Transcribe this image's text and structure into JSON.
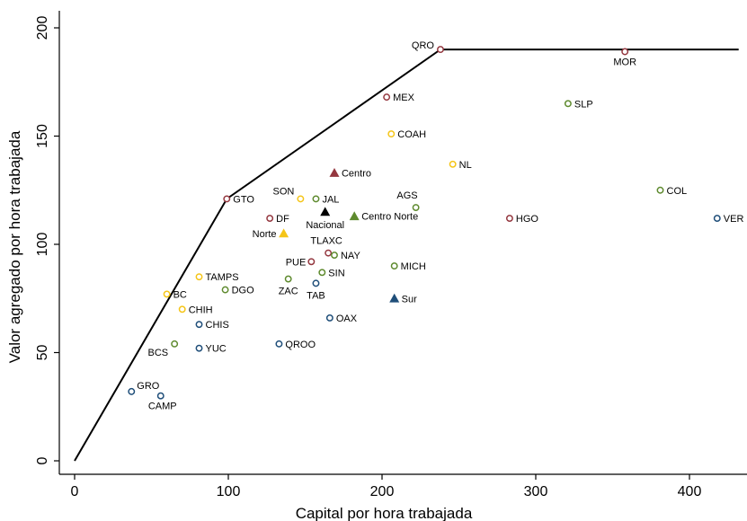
{
  "chart_data": {
    "type": "scatter",
    "xlabel": "Capital por hora trabajada",
    "ylabel": "Valor agregado por hora trabajada",
    "xlim": [
      -5,
      432
    ],
    "ylim": [
      -7,
      207
    ],
    "xticks": [
      0,
      100,
      200,
      300,
      400
    ],
    "yticks": [
      0,
      50,
      100,
      150,
      200
    ],
    "grid": false,
    "colors": {
      "centro": "#94373f",
      "norte": "#f5c518",
      "centro_norte": "#5e8a2e",
      "sur": "#1f4e79",
      "nacional": "#000000",
      "frontier": "#000000"
    },
    "frontier": [
      {
        "x": 0,
        "y": 0
      },
      {
        "x": 99,
        "y": 121
      },
      {
        "x": 238,
        "y": 190
      },
      {
        "x": 432,
        "y": 190
      }
    ],
    "states": [
      {
        "label": "QRO",
        "x": 238,
        "y": 190,
        "group": "centro",
        "anchor": "end",
        "dx": -7,
        "dy": -1
      },
      {
        "label": "MOR",
        "x": 358,
        "y": 189,
        "group": "centro",
        "anchor": "middle",
        "dx": 0,
        "dy": 15
      },
      {
        "label": "MEX",
        "x": 203,
        "y": 168,
        "group": "centro",
        "anchor": "start",
        "dx": 7,
        "dy": 4
      },
      {
        "label": "SLP",
        "x": 321,
        "y": 165,
        "group": "centro_norte",
        "anchor": "start",
        "dx": 7,
        "dy": 4
      },
      {
        "label": "COAH",
        "x": 206,
        "y": 151,
        "group": "norte",
        "anchor": "start",
        "dx": 7,
        "dy": 4
      },
      {
        "label": "NL",
        "x": 246,
        "y": 137,
        "group": "norte",
        "anchor": "start",
        "dx": 7,
        "dy": 4
      },
      {
        "label": "COL",
        "x": 381,
        "y": 125,
        "group": "centro_norte",
        "anchor": "start",
        "dx": 7,
        "dy": 4
      },
      {
        "label": "GTO",
        "x": 99,
        "y": 121,
        "group": "centro",
        "anchor": "start",
        "dx": 7,
        "dy": 4
      },
      {
        "label": "SON",
        "x": 147,
        "y": 121,
        "group": "norte",
        "anchor": "end",
        "dx": -7,
        "dy": -5
      },
      {
        "label": "JAL",
        "x": 157,
        "y": 121,
        "group": "centro_norte",
        "anchor": "start",
        "dx": 7,
        "dy": 4
      },
      {
        "label": "AGS",
        "x": 222,
        "y": 117,
        "group": "centro_norte",
        "anchor": "end",
        "dx": 2,
        "dy": -10
      },
      {
        "label": "DF",
        "x": 127,
        "y": 112,
        "group": "centro",
        "anchor": "start",
        "dx": 7,
        "dy": 4
      },
      {
        "label": "HGO",
        "x": 283,
        "y": 112,
        "group": "centro",
        "anchor": "start",
        "dx": 7,
        "dy": 4
      },
      {
        "label": "VER",
        "x": 418,
        "y": 112,
        "group": "sur",
        "anchor": "start",
        "dx": 7,
        "dy": 4
      },
      {
        "label": "TLAXC",
        "x": 165,
        "y": 96,
        "group": "centro",
        "anchor": "middle",
        "dx": -2,
        "dy": -10
      },
      {
        "label": "PUE",
        "x": 154,
        "y": 92,
        "group": "centro",
        "anchor": "end",
        "dx": -6,
        "dy": 4
      },
      {
        "label": "NAY",
        "x": 169,
        "y": 95,
        "group": "centro_norte",
        "anchor": "start",
        "dx": 7,
        "dy": 4
      },
      {
        "label": "MICH",
        "x": 208,
        "y": 90,
        "group": "centro_norte",
        "anchor": "start",
        "dx": 7,
        "dy": 4
      },
      {
        "label": "SIN",
        "x": 161,
        "y": 87,
        "group": "centro_norte",
        "anchor": "start",
        "dx": 7,
        "dy": 4
      },
      {
        "label": "TAMPS",
        "x": 81,
        "y": 85,
        "group": "norte",
        "anchor": "start",
        "dx": 7,
        "dy": 4
      },
      {
        "label": "ZAC",
        "x": 139,
        "y": 84,
        "group": "centro_norte",
        "anchor": "middle",
        "dx": 0,
        "dy": 17
      },
      {
        "label": "TAB",
        "x": 157,
        "y": 82,
        "group": "sur",
        "anchor": "middle",
        "dx": 0,
        "dy": 17
      },
      {
        "label": "DGO",
        "x": 98,
        "y": 79,
        "group": "centro_norte",
        "anchor": "start",
        "dx": 7,
        "dy": 4
      },
      {
        "label": "BC",
        "x": 60,
        "y": 77,
        "group": "norte",
        "anchor": "start",
        "dx": 7,
        "dy": 4
      },
      {
        "label": "CHIH",
        "x": 70,
        "y": 70,
        "group": "norte",
        "anchor": "start",
        "dx": 7,
        "dy": 4
      },
      {
        "label": "OAX",
        "x": 166,
        "y": 66,
        "group": "sur",
        "anchor": "start",
        "dx": 7,
        "dy": 4
      },
      {
        "label": "CHIS",
        "x": 81,
        "y": 63,
        "group": "sur",
        "anchor": "start",
        "dx": 7,
        "dy": 4
      },
      {
        "label": "QROO",
        "x": 133,
        "y": 54,
        "group": "sur",
        "anchor": "start",
        "dx": 7,
        "dy": 4
      },
      {
        "label": "BCS",
        "x": 65,
        "y": 54,
        "group": "centro_norte",
        "anchor": "end",
        "dx": -7,
        "dy": 13
      },
      {
        "label": "YUC",
        "x": 81,
        "y": 52,
        "group": "sur",
        "anchor": "start",
        "dx": 7,
        "dy": 4
      },
      {
        "label": "GRO",
        "x": 37,
        "y": 32,
        "group": "sur",
        "anchor": "start",
        "dx": 6,
        "dy": -3
      },
      {
        "label": "CAMP",
        "x": 56,
        "y": 30,
        "group": "sur",
        "anchor": "middle",
        "dx": 2,
        "dy": 15
      }
    ],
    "regions": [
      {
        "label": "Centro",
        "x": 169,
        "y": 133,
        "group": "centro",
        "anchor": "start",
        "dx": 8,
        "dy": 4
      },
      {
        "label": "Centro Norte",
        "x": 182,
        "y": 113,
        "group": "centro_norte",
        "anchor": "start",
        "dx": 8,
        "dy": 4
      },
      {
        "label": "Nacional",
        "x": 163,
        "y": 115,
        "group": "nacional",
        "anchor": "middle",
        "dx": 0,
        "dy": 18
      },
      {
        "label": "Norte",
        "x": 136,
        "y": 105,
        "group": "norte",
        "anchor": "end",
        "dx": -8,
        "dy": 4
      },
      {
        "label": "Sur",
        "x": 208,
        "y": 75,
        "group": "sur",
        "anchor": "start",
        "dx": 8,
        "dy": 4
      }
    ]
  }
}
